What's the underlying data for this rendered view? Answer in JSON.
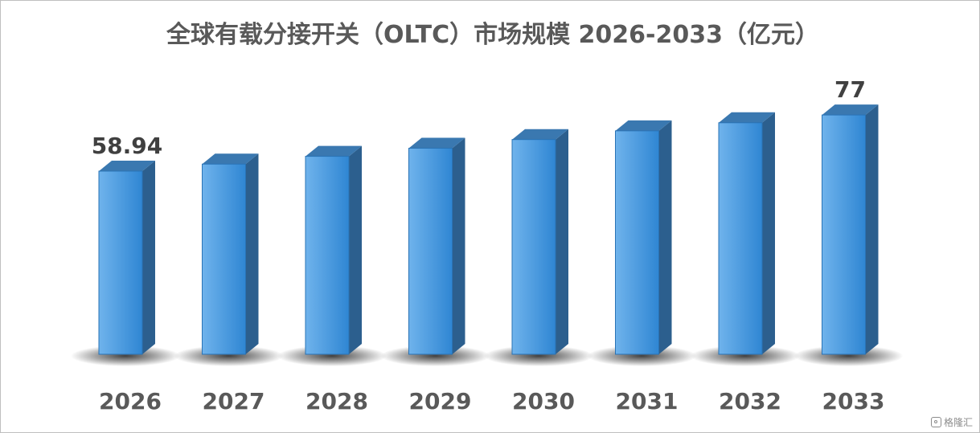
{
  "chart_data": {
    "type": "bar",
    "title": "全球有载分接开关（OLTC）市场规模 2026-2033（亿元）",
    "categories": [
      "2026",
      "2027",
      "2028",
      "2029",
      "2030",
      "2031",
      "2032",
      "2033"
    ],
    "values": [
      58.94,
      61.2,
      63.7,
      66.3,
      69.1,
      71.9,
      74.5,
      77
    ],
    "data_labels": [
      {
        "index": 0,
        "text": "58.94"
      },
      {
        "index": 7,
        "text": "77"
      }
    ],
    "ylim": [
      0,
      85
    ],
    "style": "3d-column",
    "legend": "none",
    "grid": false,
    "colors": {
      "front_light": "#6fb3ec",
      "front_dark": "#2f86d3",
      "side": "#2c5f8e",
      "top": "#3a78b0",
      "shadow": "#3a3a3a"
    }
  },
  "watermark": {
    "text": "格隆汇"
  }
}
